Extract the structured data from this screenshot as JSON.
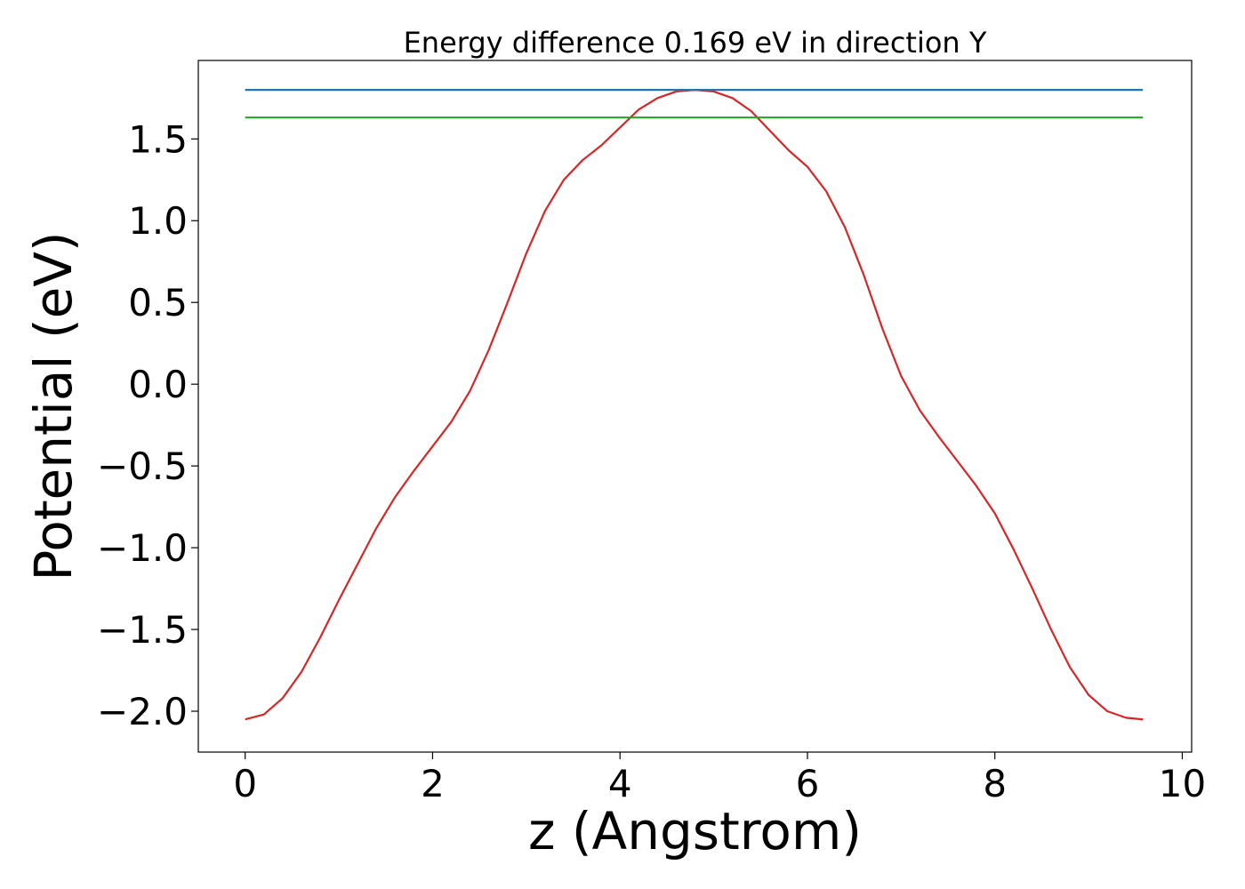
{
  "chart_data": {
    "type": "line",
    "title": "Energy difference 0.169 eV in direction Y",
    "xlabel": "z (Angstrom)",
    "ylabel": "Potential (eV)",
    "xlim": [
      -0.5,
      10.1
    ],
    "ylim": [
      -2.25,
      1.98
    ],
    "x_ticks": [
      0,
      2,
      4,
      6,
      8,
      10
    ],
    "x_tick_labels": [
      "0",
      "2",
      "4",
      "6",
      "8",
      "10"
    ],
    "y_ticks": [
      -2.0,
      -1.5,
      -1.0,
      -0.5,
      0.0,
      0.5,
      1.0,
      1.5
    ],
    "y_tick_labels": [
      "−2.0",
      "−1.5",
      "−1.0",
      "−0.5",
      "0.0",
      "0.5",
      "1.0",
      "1.5"
    ],
    "grid": false,
    "series": [
      {
        "color": "#d62728",
        "x": [
          0.0,
          0.2,
          0.4,
          0.6,
          0.8,
          1.0,
          1.2,
          1.4,
          1.6,
          1.8,
          2.0,
          2.2,
          2.4,
          2.6,
          2.8,
          3.0,
          3.2,
          3.4,
          3.6,
          3.8,
          4.0,
          4.2,
          4.4,
          4.6,
          4.8,
          5.0,
          5.2,
          5.4,
          5.6,
          5.8,
          6.0,
          6.2,
          6.4,
          6.6,
          6.8,
          7.0,
          7.2,
          7.4,
          7.6,
          7.8,
          8.0,
          8.2,
          8.4,
          8.6,
          8.8,
          9.0,
          9.2,
          9.4,
          9.58
        ],
        "y": [
          -2.05,
          -2.02,
          -1.92,
          -1.76,
          -1.55,
          -1.32,
          -1.1,
          -0.88,
          -0.69,
          -0.53,
          -0.38,
          -0.23,
          -0.04,
          0.21,
          0.5,
          0.8,
          1.06,
          1.25,
          1.37,
          1.46,
          1.57,
          1.68,
          1.75,
          1.79,
          1.8,
          1.79,
          1.75,
          1.67,
          1.55,
          1.43,
          1.33,
          1.18,
          0.96,
          0.67,
          0.34,
          0.05,
          -0.16,
          -0.32,
          -0.47,
          -0.62,
          -0.79,
          -1.01,
          -1.25,
          -1.5,
          -1.73,
          -1.9,
          -2.0,
          -2.04,
          -2.05
        ]
      },
      {
        "color": "#1f77b4",
        "x": [
          0.0,
          9.58
        ],
        "y": [
          1.8,
          1.8
        ]
      },
      {
        "color": "#2ca02c",
        "x": [
          0.0,
          9.58
        ],
        "y": [
          1.631,
          1.631
        ]
      }
    ]
  }
}
